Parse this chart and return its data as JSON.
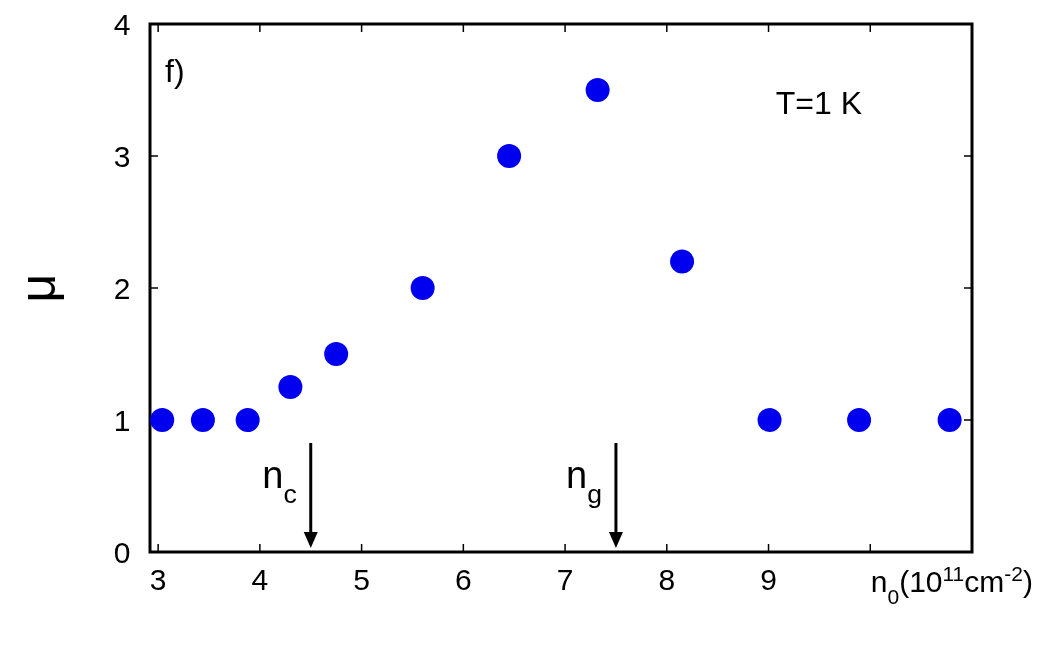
{
  "chart_data": {
    "type": "scatter",
    "xlabel": "n$_{0}$(10$^{11}$cm$^{-2}$)",
    "ylabel": "μ",
    "x": [
      3.04,
      3.44,
      3.88,
      4.3,
      4.75,
      5.6,
      6.45,
      7.32,
      8.15,
      9.01,
      9.89,
      10.78
    ],
    "series": [
      {
        "color": "#0000ee",
        "values": [
          1,
          1,
          1,
          1.25,
          1.5,
          2,
          3,
          3.5,
          2.2,
          1,
          1,
          1
        ]
      }
    ],
    "xlim": [
      2.92,
      11
    ],
    "xticks": [
      3,
      4,
      5,
      6,
      7,
      8,
      9,
      {
        "value": 10,
        "label": null
      }
    ],
    "ylim": [
      0,
      4
    ],
    "yticks": [
      0,
      1,
      2,
      3,
      4
    ],
    "marker": "circle",
    "grid": false,
    "annotations": [
      "f)",
      "T=1 K"
    ],
    "ref_lines": [
      {
        "axis": "x",
        "value": 4.5,
        "label": "n$_{c}$"
      },
      {
        "axis": "x",
        "value": 7.5,
        "label": "n$_{g}$"
      }
    ]
  }
}
